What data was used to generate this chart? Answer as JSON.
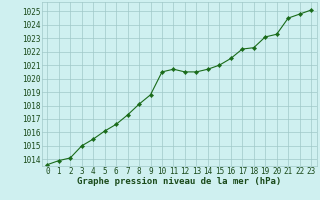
{
  "x": [
    0,
    1,
    2,
    3,
    4,
    5,
    6,
    7,
    8,
    9,
    10,
    11,
    12,
    13,
    14,
    15,
    16,
    17,
    18,
    19,
    20,
    21,
    22,
    23
  ],
  "y": [
    1013.6,
    1013.9,
    1014.1,
    1015.0,
    1015.5,
    1016.1,
    1016.6,
    1017.3,
    1018.1,
    1018.8,
    1020.5,
    1020.7,
    1020.5,
    1020.5,
    1020.7,
    1021.0,
    1021.5,
    1022.2,
    1022.3,
    1023.1,
    1023.3,
    1024.5,
    1024.8,
    1025.1
  ],
  "xlim": [
    -0.5,
    23.5
  ],
  "ylim": [
    1013.5,
    1025.7
  ],
  "yticks": [
    1014,
    1015,
    1016,
    1017,
    1018,
    1019,
    1020,
    1021,
    1022,
    1023,
    1024,
    1025
  ],
  "xticks": [
    0,
    1,
    2,
    3,
    4,
    5,
    6,
    7,
    8,
    9,
    10,
    11,
    12,
    13,
    14,
    15,
    16,
    17,
    18,
    19,
    20,
    21,
    22,
    23
  ],
  "xlabel": "Graphe pression niveau de la mer (hPa)",
  "line_color": "#1a6b1a",
  "marker": "D",
  "marker_size": 2.2,
  "bg_color": "#cff0f0",
  "grid_color": "#a0c8c8",
  "text_color": "#1a4a1a",
  "font_size_label": 6.5,
  "font_size_tick": 5.5,
  "line_width": 0.8
}
